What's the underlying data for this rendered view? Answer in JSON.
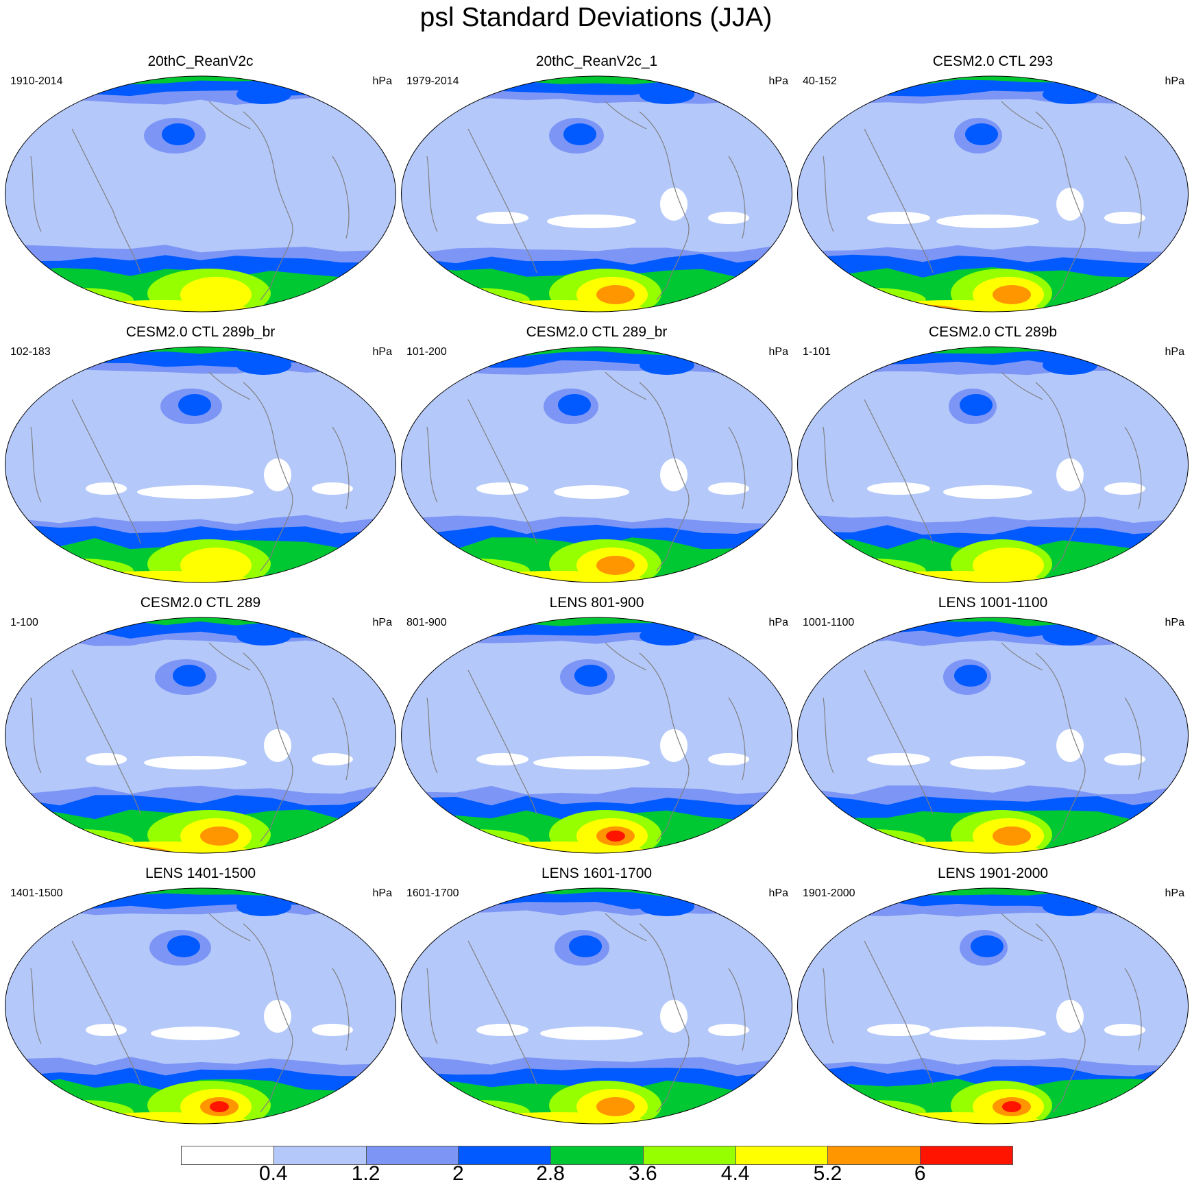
{
  "title": "psl Standard Deviations (JJA)",
  "panels": [
    {
      "title": "20thC_ReanV2c",
      "years": "1910-2014",
      "units": "hPa",
      "peak_level": 6
    },
    {
      "title": "20thC_ReanV2c_1",
      "years": "1979-2014",
      "units": "hPa",
      "peak_level": 7
    },
    {
      "title": "CESM2.0 CTL 293",
      "years": "40-152",
      "units": "hPa",
      "peak_level": 7
    },
    {
      "title": "CESM2.0 CTL 289b_br",
      "years": "102-183",
      "units": "hPa",
      "peak_level": 6
    },
    {
      "title": "CESM2.0 CTL 289_br",
      "years": "101-200",
      "units": "hPa",
      "peak_level": 7
    },
    {
      "title": "CESM2.0 CTL 289b",
      "years": "1-101",
      "units": "hPa",
      "peak_level": 6
    },
    {
      "title": "CESM2.0 CTL 289",
      "years": "1-100",
      "units": "hPa",
      "peak_level": 7
    },
    {
      "title": "LENS 801-900",
      "years": "801-900",
      "units": "hPa",
      "peak_level": 8
    },
    {
      "title": "LENS 1001-1100",
      "years": "1001-1100",
      "units": "hPa",
      "peak_level": 7
    },
    {
      "title": "LENS 1401-1500",
      "years": "1401-1500",
      "units": "hPa",
      "peak_level": 8
    },
    {
      "title": "LENS 1601-1700",
      "years": "1601-1700",
      "units": "hPa",
      "peak_level": 7
    },
    {
      "title": "LENS 1901-2000",
      "years": "1901-2000",
      "units": "hPa",
      "peak_level": 8
    }
  ],
  "colorbar": {
    "colors": [
      "#ffffff",
      "#b4c8fa",
      "#7d96f5",
      "#005aff",
      "#00c832",
      "#96ff00",
      "#ffff00",
      "#ff9600",
      "#ff1400"
    ],
    "labels": [
      "0.4",
      "1.2",
      "2",
      "2.8",
      "3.6",
      "4.4",
      "5.2",
      "6"
    ]
  },
  "coastline_color": "#808080"
}
